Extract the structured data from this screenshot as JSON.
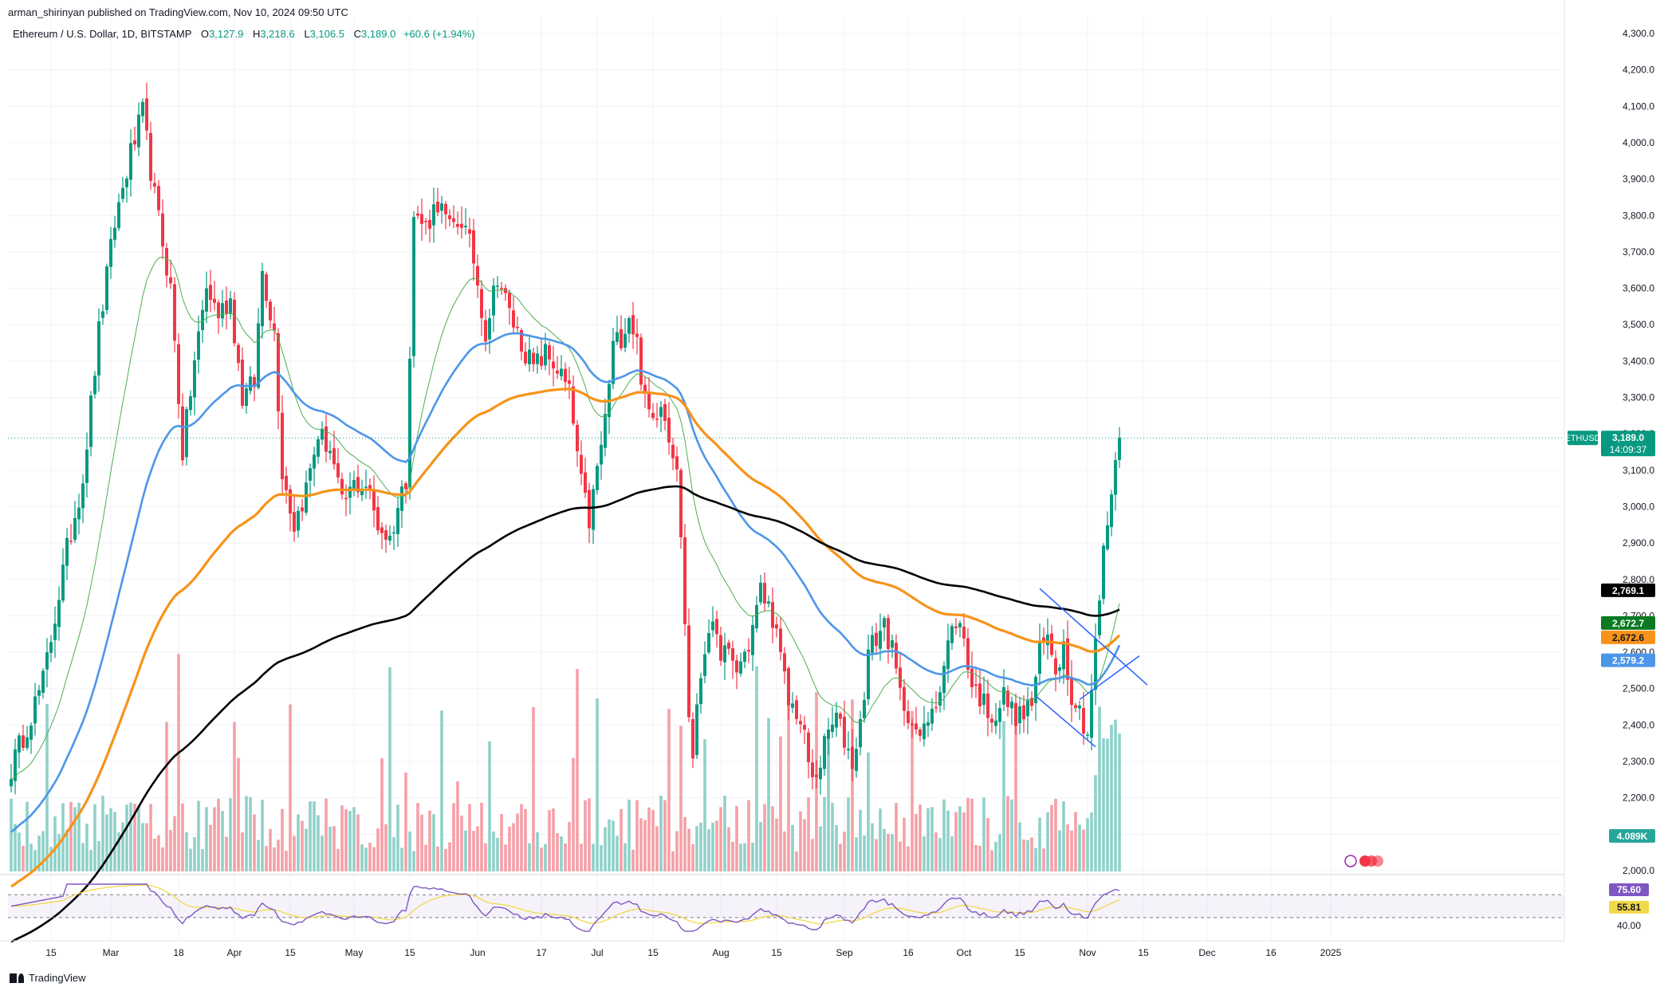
{
  "publisher": "arman_shirinyan published on TradingView.com, Nov 10, 2024 09:50 UTC",
  "symbol": {
    "name": "Ethereum / U.S. Dollar, 1D, BITSTAMP",
    "open_label": "O",
    "open": "3,127.9",
    "high_label": "H",
    "high": "3,218.6",
    "low_label": "L",
    "low": "3,106.5",
    "close_label": "C",
    "close": "3,189.0",
    "change": "+60.6 (+1.94%)"
  },
  "colors": {
    "up": "#089981",
    "down": "#f23645",
    "vol_up": "#8fd1c9",
    "vol_down": "#f5a0a6",
    "ema_blue": "#4c96e8",
    "ema_orange": "#f7931a",
    "ema_black": "#000000",
    "ema_green": "#4caf50",
    "rsi": "#7e57c2",
    "rsi_ma": "#f2d94a",
    "price_line": "#089981",
    "channel": "#2962ff"
  },
  "chart_data": {
    "type": "candlestick",
    "title": "Ethereum / U.S. Dollar, 1D, BITSTAMP",
    "xlabel": "",
    "ylabel": "",
    "ylim": [
      2000,
      4330
    ],
    "y_ticks": [
      "4,300.0",
      "4,200.0",
      "4,100.0",
      "4,000.0",
      "3,900.0",
      "3,800.0",
      "3,700.0",
      "3,600.0",
      "3,500.0",
      "3,400.0",
      "3,300.0",
      "3,200.0",
      "3,100.0",
      "3,000.0",
      "2,900.0",
      "2,800.0",
      "2,700.0",
      "2,600.0",
      "2,500.0",
      "2,400.0",
      "2,300.0",
      "2,200.0",
      "2,100.0",
      "2,000.0"
    ],
    "x_ticks": [
      {
        "label": "15",
        "day": 10
      },
      {
        "label": "Mar",
        "day": 25
      },
      {
        "label": "18",
        "day": 42
      },
      {
        "label": "Apr",
        "day": 56
      },
      {
        "label": "15",
        "day": 70
      },
      {
        "label": "May",
        "day": 86
      },
      {
        "label": "15",
        "day": 100
      },
      {
        "label": "Jun",
        "day": 117
      },
      {
        "label": "17",
        "day": 133
      },
      {
        "label": "Jul",
        "day": 147
      },
      {
        "label": "15",
        "day": 161
      },
      {
        "label": "Aug",
        "day": 178
      },
      {
        "label": "15",
        "day": 192
      },
      {
        "label": "Sep",
        "day": 209
      },
      {
        "label": "16",
        "day": 225
      },
      {
        "label": "Oct",
        "day": 239
      },
      {
        "label": "15",
        "day": 253
      },
      {
        "label": "Nov",
        "day": 270
      },
      {
        "label": "15",
        "day": 284
      },
      {
        "label": "Dec",
        "day": 300
      },
      {
        "label": "16",
        "day": 316
      },
      {
        "label": "2025",
        "day": 331
      }
    ],
    "anchors": [
      [
        0,
        2280
      ],
      [
        8,
        2520
      ],
      [
        14,
        2880
      ],
      [
        18,
        3080
      ],
      [
        22,
        3480
      ],
      [
        26,
        3780
      ],
      [
        30,
        3970
      ],
      [
        33,
        4080
      ],
      [
        36,
        3850
      ],
      [
        40,
        3600
      ],
      [
        43,
        3150
      ],
      [
        46,
        3400
      ],
      [
        49,
        3600
      ],
      [
        52,
        3530
      ],
      [
        55,
        3570
      ],
      [
        58,
        3300
      ],
      [
        61,
        3340
      ],
      [
        63,
        3650
      ],
      [
        66,
        3480
      ],
      [
        68,
        3100
      ],
      [
        71,
        2950
      ],
      [
        74,
        3050
      ],
      [
        77,
        3200
      ],
      [
        80,
        3160
      ],
      [
        83,
        3000
      ],
      [
        86,
        3060
      ],
      [
        89,
        3060
      ],
      [
        92,
        2950
      ],
      [
        95,
        2910
      ],
      [
        97,
        3000
      ],
      [
        99,
        3080
      ],
      [
        101,
        3800
      ],
      [
        104,
        3770
      ],
      [
        107,
        3840
      ],
      [
        110,
        3760
      ],
      [
        113,
        3790
      ],
      [
        116,
        3680
      ],
      [
        119,
        3480
      ],
      [
        122,
        3640
      ],
      [
        125,
        3530
      ],
      [
        128,
        3450
      ],
      [
        131,
        3380
      ],
      [
        134,
        3420
      ],
      [
        137,
        3380
      ],
      [
        140,
        3310
      ],
      [
        143,
        3060
      ],
      [
        145,
        2960
      ],
      [
        147,
        3100
      ],
      [
        149,
        3240
      ],
      [
        151,
        3440
      ],
      [
        153,
        3470
      ],
      [
        155,
        3530
      ],
      [
        157,
        3450
      ],
      [
        159,
        3280
      ],
      [
        161,
        3240
      ],
      [
        163,
        3300
      ],
      [
        165,
        3200
      ],
      [
        167,
        3120
      ],
      [
        168,
        2900
      ],
      [
        169,
        2690
      ],
      [
        170,
        2420
      ],
      [
        171,
        2320
      ],
      [
        173,
        2540
      ],
      [
        175,
        2680
      ],
      [
        177,
        2620
      ],
      [
        179,
        2600
      ],
      [
        182,
        2550
      ],
      [
        185,
        2620
      ],
      [
        188,
        2770
      ],
      [
        191,
        2700
      ],
      [
        193,
        2580
      ],
      [
        195,
        2460
      ],
      [
        197,
        2440
      ],
      [
        199,
        2360
      ],
      [
        201,
        2240
      ],
      [
        203,
        2300
      ],
      [
        205,
        2380
      ],
      [
        207,
        2420
      ],
      [
        209,
        2360
      ],
      [
        211,
        2300
      ],
      [
        213,
        2400
      ],
      [
        215,
        2600
      ],
      [
        217,
        2640
      ],
      [
        219,
        2680
      ],
      [
        221,
        2600
      ],
      [
        223,
        2480
      ],
      [
        225,
        2440
      ],
      [
        227,
        2360
      ],
      [
        229,
        2380
      ],
      [
        231,
        2460
      ],
      [
        233,
        2500
      ],
      [
        235,
        2620
      ],
      [
        237,
        2690
      ],
      [
        239,
        2640
      ],
      [
        241,
        2510
      ],
      [
        243,
        2480
      ],
      [
        245,
        2440
      ],
      [
        247,
        2430
      ],
      [
        249,
        2480
      ],
      [
        251,
        2440
      ],
      [
        253,
        2420
      ],
      [
        256,
        2460
      ],
      [
        258,
        2600
      ],
      [
        260,
        2640
      ],
      [
        262,
        2560
      ],
      [
        264,
        2620
      ],
      [
        266,
        2490
      ],
      [
        268,
        2440
      ],
      [
        270,
        2380
      ],
      [
        272,
        2620
      ],
      [
        274,
        2870
      ],
      [
        276,
        3040
      ],
      [
        277,
        3127.9
      ],
      [
        278,
        3189
      ]
    ],
    "current_price": 3189.0,
    "price_label": "ETHUSD",
    "price_value": "3,189.0",
    "countdown": "14:09:37",
    "ema_labels": [
      {
        "value": "2,769.1",
        "bg": "#000000",
        "fg": "#ffffff",
        "price": 2769.1
      },
      {
        "value": "2,672.7",
        "bg": "#0b7a23",
        "fg": "#ffffff",
        "price": 2672.7
      },
      {
        "value": "2,672.6",
        "bg": "#f7931a",
        "fg": "#131722",
        "price": 2672.6
      },
      {
        "value": "2,579.2",
        "bg": "#4c96e8",
        "fg": "#ffffff",
        "price": 2579.2
      }
    ],
    "volume_label": "4.089K",
    "rsi": {
      "value": "75.60",
      "ma_value": "55.81",
      "level": "40.00",
      "upper": 70,
      "lower": 40
    }
  }
}
